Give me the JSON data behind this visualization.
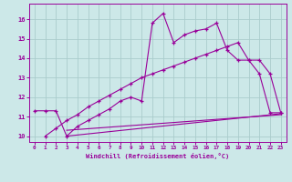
{
  "background_color": "#cce8e8",
  "grid_color": "#aacccc",
  "line_color": "#990099",
  "xlim": [
    -0.5,
    23.5
  ],
  "ylim": [
    9.7,
    16.8
  ],
  "xticks": [
    0,
    1,
    2,
    3,
    4,
    5,
    6,
    7,
    8,
    9,
    10,
    11,
    12,
    13,
    14,
    15,
    16,
    17,
    18,
    19,
    20,
    21,
    22,
    23
  ],
  "yticks": [
    10,
    11,
    12,
    13,
    14,
    15,
    16
  ],
  "xlabel": "Windchill (Refroidissement éolien,°C)",
  "line1_x": [
    0,
    1,
    2,
    3,
    4,
    5,
    6,
    7,
    8,
    9,
    10,
    11,
    12,
    13,
    14,
    15,
    16,
    17,
    18,
    19,
    20,
    21,
    22,
    23
  ],
  "line1_y": [
    11.3,
    11.3,
    11.3,
    10.0,
    10.5,
    10.8,
    11.1,
    11.4,
    11.8,
    12.0,
    11.8,
    15.8,
    16.3,
    14.8,
    15.2,
    15.4,
    15.5,
    15.8,
    14.4,
    13.9,
    13.9,
    13.2,
    11.2,
    11.2
  ],
  "line2_x": [
    1,
    2,
    3,
    4,
    5,
    6,
    7,
    8,
    9,
    10,
    11,
    12,
    13,
    14,
    15,
    16,
    17,
    18,
    19,
    20,
    21,
    22,
    23
  ],
  "line2_y": [
    10.0,
    10.4,
    10.8,
    11.1,
    11.5,
    11.8,
    12.1,
    12.4,
    12.7,
    13.0,
    13.2,
    13.4,
    13.6,
    13.8,
    14.0,
    14.2,
    14.4,
    14.6,
    14.8,
    13.9,
    13.9,
    13.2,
    11.2
  ],
  "line3_x": [
    3,
    23
  ],
  "line3_y": [
    10.0,
    11.15
  ],
  "line4_x": [
    3,
    23
  ],
  "line4_y": [
    10.3,
    11.1
  ]
}
